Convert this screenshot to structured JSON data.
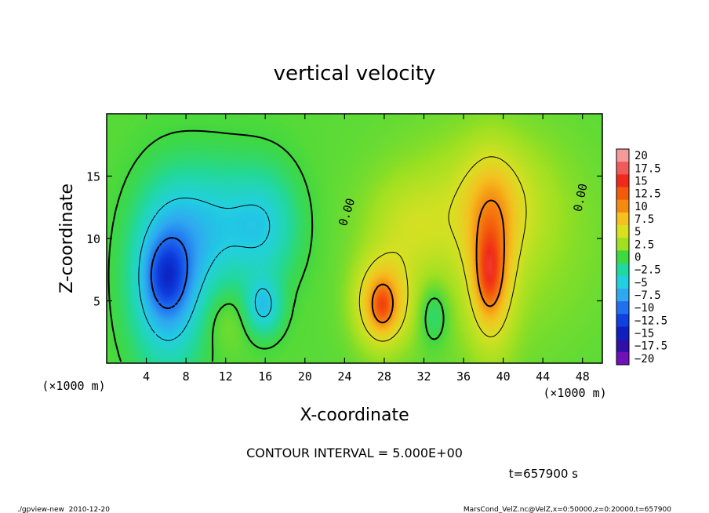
{
  "chart_data": {
    "type": "heatmap",
    "title": "vertical velocity",
    "xlabel": "X-coordinate",
    "ylabel": "Z-coordinate",
    "x_unit": "(×1000 m)",
    "y_unit": "(×1000 m)",
    "xlim": [
      0,
      50
    ],
    "ylim": [
      0,
      20
    ],
    "x_ticks": [
      4,
      8,
      12,
      16,
      20,
      24,
      28,
      32,
      36,
      40,
      44,
      48
    ],
    "y_ticks": [
      5,
      10,
      15
    ],
    "colorbar": {
      "labels": [
        "20",
        "17.5",
        "15",
        "12.5",
        "10",
        "7.5",
        "5",
        "2.5",
        "0",
        "−2.5",
        "−5",
        "−7.5",
        "−10",
        "−12.5",
        "−15",
        "−17.5",
        "−20"
      ],
      "colors": [
        "#f49a9a",
        "#f05a5a",
        "#f02a1a",
        "#f35a0a",
        "#f58a10",
        "#f5c020",
        "#d8e020",
        "#a0e020",
        "#40d840",
        "#20d8a0",
        "#20d0e0",
        "#30a8f0",
        "#2070f0",
        "#1040e0",
        "#1020c0",
        "#3010a8",
        "#7010b8"
      ]
    },
    "contour_labels": [
      "0.00",
      "0.00"
    ],
    "contour_interval_text": "CONTOUR INTERVAL = 5.000E+00",
    "time_text": "t=657900 s",
    "footer_left": "./gpview-new  2010-12-20",
    "footer_right": "MarsCond_VelZ.nc@VelZ,x=0:50000,z=0:20000,t=657900",
    "blobs": [
      {
        "x": 6.2,
        "z": 6.5,
        "rx": 3.6,
        "rz": 6.5,
        "w": -9
      },
      {
        "x": 6.0,
        "z": 7.0,
        "rx": 2.0,
        "rz": 2.8,
        "w": -5
      },
      {
        "x": 10.5,
        "z": 11.0,
        "rx": 5.0,
        "rz": 5.0,
        "w": -5
      },
      {
        "x": 16.0,
        "z": 11.0,
        "rx": 3.5,
        "rz": 4.5,
        "w": -4.5
      },
      {
        "x": 15.8,
        "z": 4.5,
        "rx": 1.8,
        "rz": 2.2,
        "w": -6
      },
      {
        "x": 12.0,
        "z": 3.5,
        "rx": 2.5,
        "rz": 2.5,
        "w": 1.5
      },
      {
        "x": 27.8,
        "z": 4.8,
        "rx": 2.6,
        "rz": 3.4,
        "w": 8.5
      },
      {
        "x": 27.8,
        "z": 4.6,
        "rx": 1.0,
        "rz": 1.6,
        "w": 4
      },
      {
        "x": 38.8,
        "z": 8.0,
        "rx": 2.3,
        "rz": 6.5,
        "w": 7
      },
      {
        "x": 38.6,
        "z": 7.2,
        "rx": 1.2,
        "rz": 3.0,
        "w": 5.5
      },
      {
        "x": 39.0,
        "z": 13.0,
        "rx": 5.0,
        "rz": 4.5,
        "w": 3.5
      },
      {
        "x": 30.5,
        "z": 11.0,
        "rx": 4.0,
        "rz": 4.0,
        "w": 2.5
      },
      {
        "x": 33.0,
        "z": 4.0,
        "rx": 1.5,
        "rz": 2.5,
        "w": -3
      },
      {
        "x": 38.0,
        "z": 10.0,
        "rx": 11.0,
        "rz": 9.0,
        "w": 2.2
      }
    ]
  }
}
